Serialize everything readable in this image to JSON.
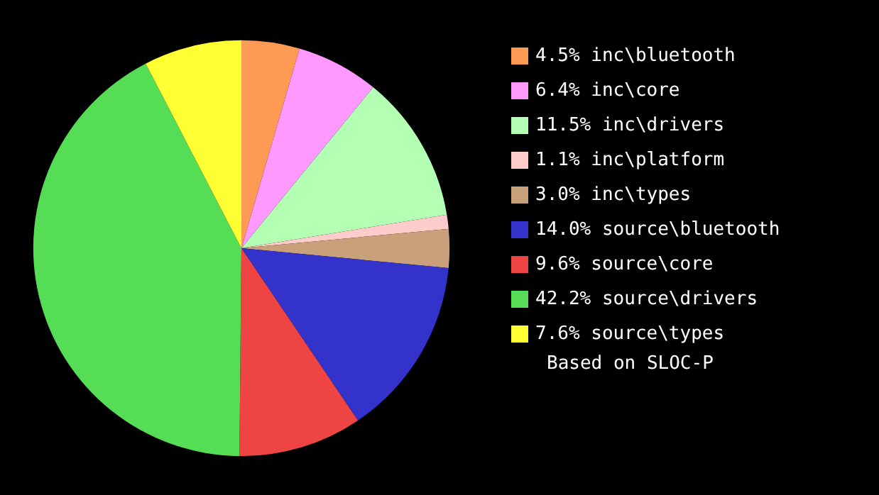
{
  "chart_data": {
    "type": "pie",
    "categories": [
      "inc\\bluetooth",
      "inc\\core",
      "inc\\drivers",
      "inc\\platform",
      "inc\\types",
      "source\\bluetooth",
      "source\\core",
      "source\\drivers",
      "source\\types"
    ],
    "values": [
      4.5,
      6.4,
      11.5,
      1.1,
      3.0,
      14.0,
      9.6,
      42.2,
      7.6
    ],
    "value_labels": [
      "4.5%",
      "6.4%",
      "11.5%",
      "1.1%",
      "3.0%",
      "14.0%",
      "9.6%",
      "42.2%",
      "7.6%"
    ],
    "colors": [
      "#ff9a55",
      "#ff99ff",
      "#b3ffb3",
      "#ffcccc",
      "#c8a07a",
      "#3333cc",
      "#ee4444",
      "#55dd55",
      "#ffff33"
    ],
    "legend": "right",
    "annotations": [
      "Based on SLOC-P"
    ]
  }
}
